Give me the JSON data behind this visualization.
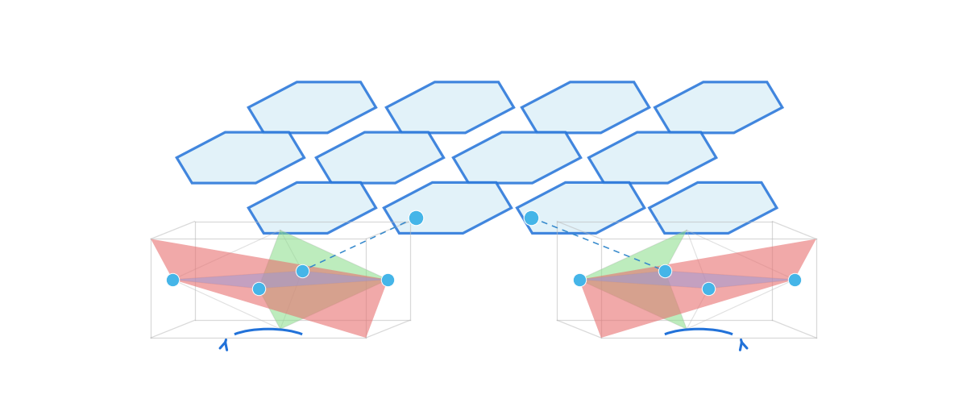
{
  "background_color": "#ffffff",
  "hex_fill": "#ddf0f8",
  "hex_edge": "#2272d9",
  "hex_linewidth": 2.3,
  "dot_color": "#45b5e8",
  "dot_size": 100,
  "dashed_line_color": "#3388cc",
  "wire_color": "#bbbbbb",
  "wire_lw": 0.9,
  "red_fill": "#e87070",
  "green_fill": "#88dd88",
  "blue_fill": "#9898d8",
  "red_alpha": 0.6,
  "green_alpha": 0.55,
  "blue_alpha": 0.5,
  "arrow_color": "#2272d9",
  "arrow_lw": 2.2
}
